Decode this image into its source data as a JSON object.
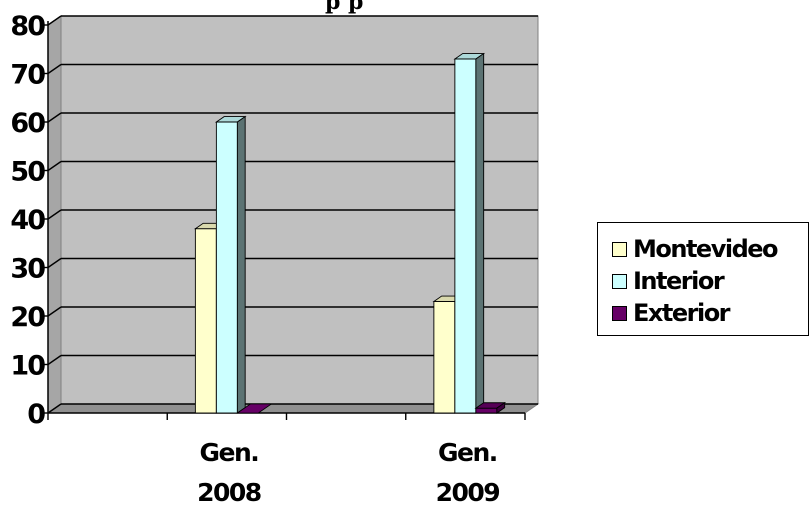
{
  "chart_data": {
    "type": "bar",
    "title": "",
    "title_visible_fragment": "p p",
    "categories": [
      [
        "",
        ""
      ],
      [
        "Gen.",
        "2008"
      ],
      [
        "",
        ""
      ],
      [
        "Gen.",
        "2009"
      ]
    ],
    "series": [
      {
        "name": "Montevideo",
        "values": [
          0,
          38,
          0,
          23
        ],
        "color": "#FFFFCC"
      },
      {
        "name": "Interior",
        "values": [
          0,
          60,
          0,
          73
        ],
        "color": "#CCFFFF"
      },
      {
        "name": "Exterior",
        "values": [
          0,
          0,
          0,
          1
        ],
        "color": "#660066"
      }
    ],
    "ylim": [
      0,
      80
    ],
    "yticks": [
      0,
      10,
      20,
      30,
      40,
      50,
      60,
      70,
      80
    ],
    "grid": true,
    "plot_background": "#C0C0C0",
    "legend_position": "right"
  }
}
